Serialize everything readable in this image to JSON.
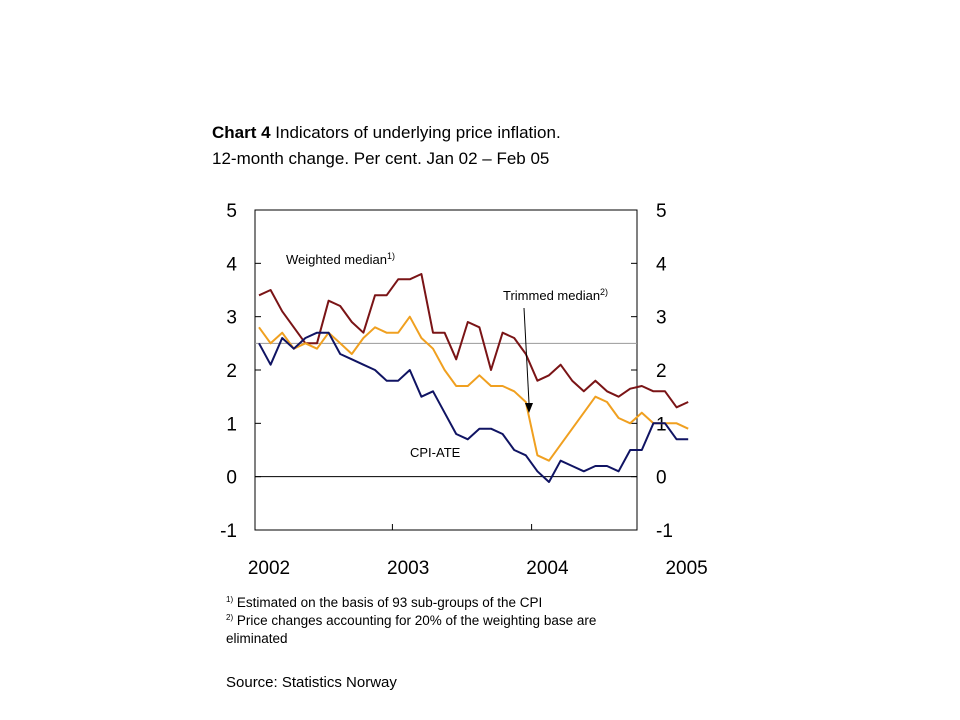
{
  "title": {
    "bold": "Chart 4",
    "rest": " Indicators of underlying price inflation.",
    "line2": "12-month change. Per cent. Jan 02 – Feb 05"
  },
  "notes": {
    "n1_mark": "1)",
    "n1_text": " Estimated on the basis of 93 sub-groups of the CPI",
    "n2_mark": "2)",
    "n2_text": " Price changes accounting for 20% of the weighting base are eliminated"
  },
  "source": "Source: Statistics Norway",
  "colors": {
    "weighted_median": "#7a1416",
    "trimmed_median": "#f0a020",
    "cpi_ate": "#101463",
    "reference_line": "#9a9a9a"
  },
  "chart_data": {
    "type": "line",
    "x_start": "2002-01",
    "x_end": "2005-02",
    "x_ticks": [
      "2002",
      "2003",
      "2004",
      "2005"
    ],
    "ylim": [
      -1,
      5
    ],
    "y_ticks": [
      "5",
      "4",
      "3",
      "2",
      "1",
      "0",
      "-1"
    ],
    "reference_value": 2.5,
    "x": [
      "2002-01",
      "2002-02",
      "2002-03",
      "2002-04",
      "2002-05",
      "2002-06",
      "2002-07",
      "2002-08",
      "2002-09",
      "2002-10",
      "2002-11",
      "2002-12",
      "2003-01",
      "2003-02",
      "2003-03",
      "2003-04",
      "2003-05",
      "2003-06",
      "2003-07",
      "2003-08",
      "2003-09",
      "2003-10",
      "2003-11",
      "2003-12",
      "2004-01",
      "2004-02",
      "2004-03",
      "2004-04",
      "2004-05",
      "2004-06",
      "2004-07",
      "2004-08",
      "2004-09",
      "2004-10",
      "2004-11",
      "2004-12",
      "2005-01",
      "2005-02"
    ],
    "series": [
      {
        "name": "Weighted median",
        "label_mark": "1)",
        "values": [
          3.4,
          3.5,
          3.1,
          2.8,
          2.5,
          2.5,
          3.3,
          3.2,
          2.9,
          2.7,
          3.4,
          3.4,
          3.7,
          3.7,
          3.8,
          2.7,
          2.7,
          2.2,
          2.9,
          2.8,
          2.0,
          2.7,
          2.6,
          2.3,
          1.8,
          1.9,
          2.1,
          1.8,
          1.6,
          1.8,
          1.6,
          1.5,
          1.65,
          1.7,
          1.6,
          1.6,
          1.3,
          1.4
        ]
      },
      {
        "name": "Trimmed median",
        "label_mark": "2)",
        "values": [
          2.8,
          2.5,
          2.7,
          2.4,
          2.5,
          2.4,
          2.7,
          2.5,
          2.3,
          2.6,
          2.8,
          2.7,
          2.7,
          3.0,
          2.6,
          2.4,
          2.0,
          1.7,
          1.7,
          1.9,
          1.7,
          1.7,
          1.6,
          1.4,
          0.4,
          0.3,
          0.6,
          0.9,
          1.2,
          1.5,
          1.4,
          1.1,
          1.0,
          1.2,
          1.0,
          1.0,
          1.0,
          0.9
        ]
      },
      {
        "name": "CPI-ATE",
        "label_mark": "",
        "values": [
          2.5,
          2.1,
          2.6,
          2.4,
          2.6,
          2.7,
          2.7,
          2.3,
          2.2,
          2.1,
          2.0,
          1.8,
          1.8,
          2.0,
          1.5,
          1.6,
          1.2,
          0.8,
          0.7,
          0.9,
          0.9,
          0.8,
          0.5,
          0.4,
          0.1,
          -0.1,
          0.3,
          0.2,
          0.1,
          0.2,
          0.2,
          0.1,
          0.5,
          0.5,
          1.0,
          1.0,
          0.7,
          0.7
        ]
      }
    ]
  }
}
